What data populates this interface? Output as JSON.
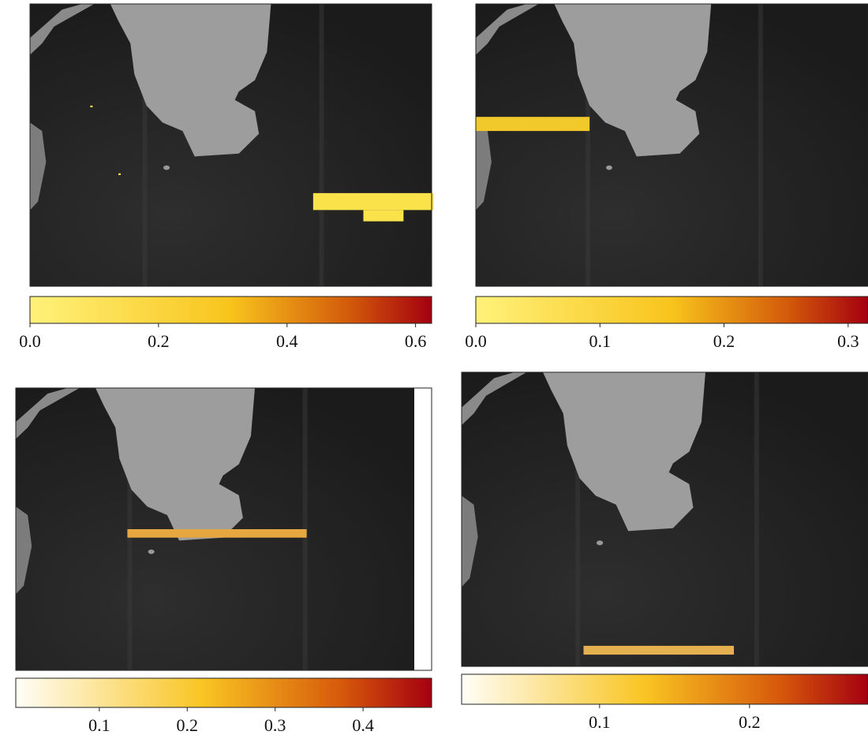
{
  "panels": [
    {
      "colorbar": {
        "lim": [
          0,
          0.625
        ],
        "ticks": [
          {
            "value": 0,
            "label": "0.0"
          },
          0.2,
          0.4,
          0.6
        ]
      }
    },
    {
      "colorbar": {
        "lim": [
          0,
          0.316
        ],
        "ticks": [
          {
            "value": 0,
            "label": "0.0"
          },
          0.1,
          0.2,
          0.3
        ]
      }
    },
    {
      "colorbar": {
        "lim": [
          0.005,
          0.478
        ],
        "ticks": [
          0.1,
          0.2,
          0.3,
          0.4
        ]
      }
    },
    {
      "colorbar": {
        "lim": [
          0.008,
          0.279
        ],
        "ticks": [
          0.1,
          0.2
        ]
      }
    }
  ]
}
